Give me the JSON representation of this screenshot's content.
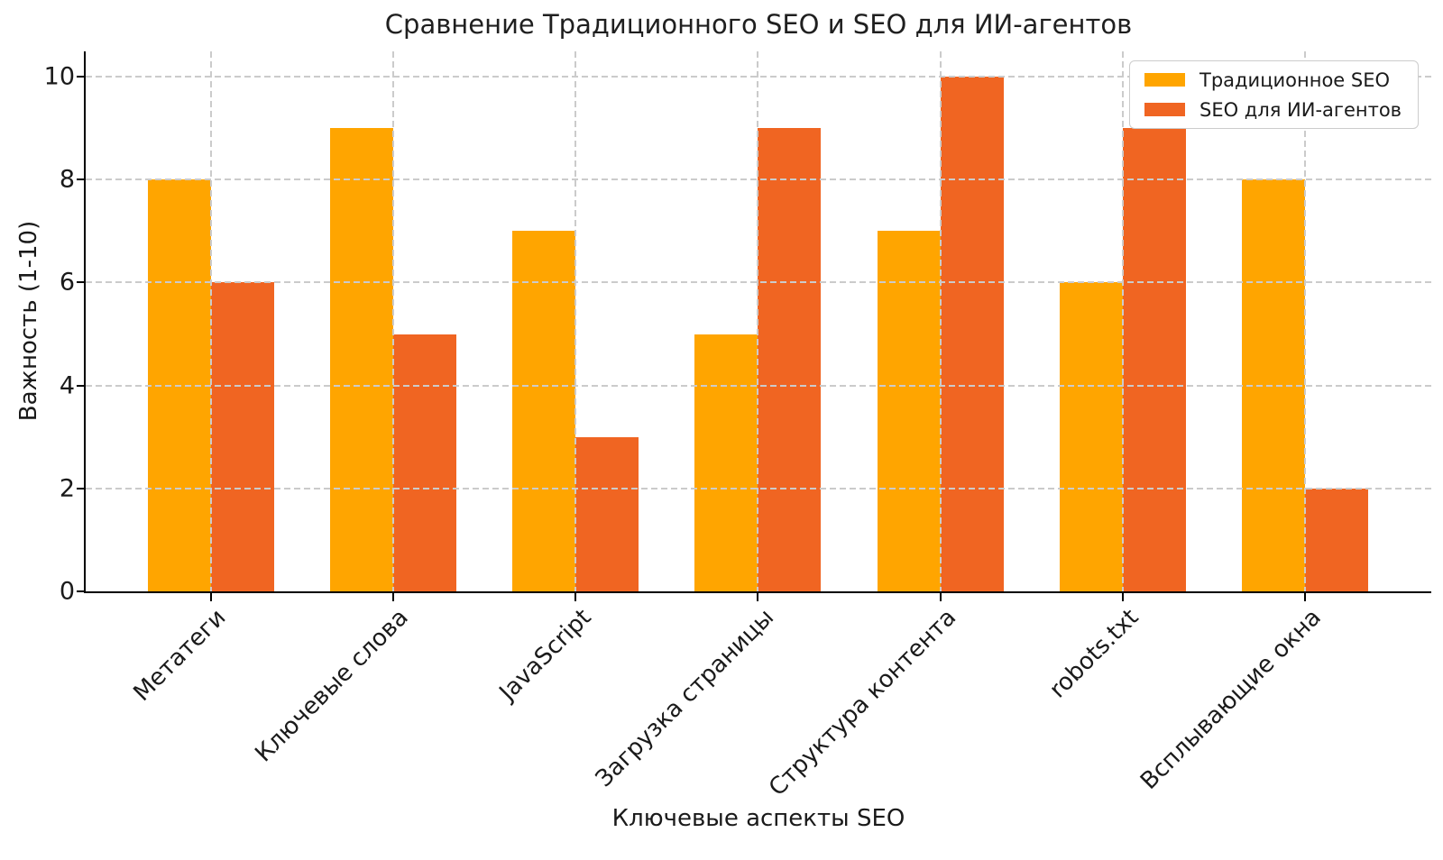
{
  "chart_data": {
    "type": "bar",
    "title": "Сравнение Традиционного SEO и SEO для ИИ-агентов",
    "xlabel": "Ключевые аспекты SEO",
    "ylabel": "Важность (1-10)",
    "categories": [
      "Метатеги",
      "Ключевые слова",
      "JavaScript",
      "Загрузка страницы",
      "Структура контента",
      "robots.txt",
      "Всплывающие окна"
    ],
    "series": [
      {
        "name": "Традиционное SEO",
        "color": "#FFA500",
        "values": [
          8,
          9,
          7,
          5,
          7,
          6,
          8
        ]
      },
      {
        "name": "SEO для ИИ-агентов",
        "color": "#F06522",
        "values": [
          6,
          5,
          3,
          9,
          10,
          9,
          2
        ]
      }
    ],
    "yticks": [
      0,
      2,
      4,
      6,
      8,
      10
    ],
    "ylim": [
      0,
      10.5
    ],
    "grid": true,
    "grid_style": "dashed",
    "grid_color": "#cbcbcb",
    "legend_position": "upper right",
    "x_tick_rotation": 45
  }
}
